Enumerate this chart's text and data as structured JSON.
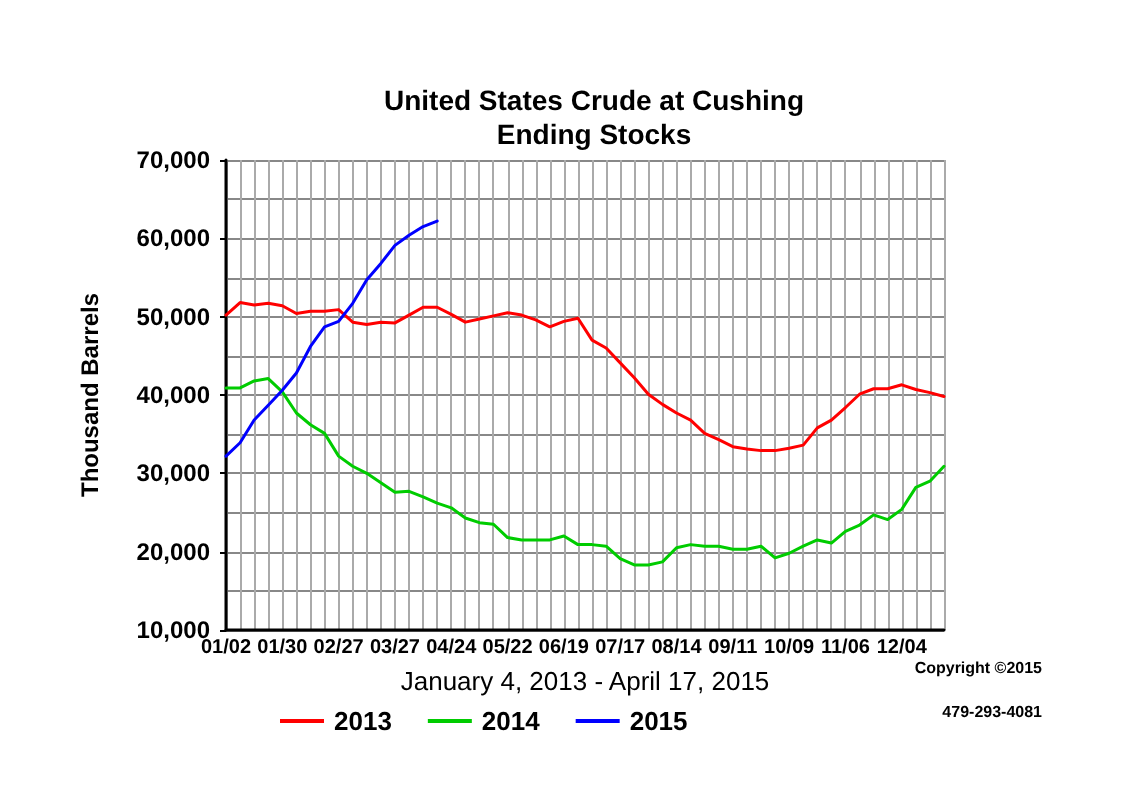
{
  "chart_data": {
    "type": "line",
    "title": "United States Crude at Cushing",
    "subtitle": "Ending Stocks",
    "xlabel": "January 4, 2013 - April 17, 2015",
    "ylabel": "Thousand Barrels",
    "annotations": [
      "Copyright ©2015",
      "479-293-4081"
    ],
    "categories": [
      "01/02",
      null,
      null,
      null,
      "01/30",
      null,
      null,
      null,
      "02/27",
      null,
      null,
      null,
      "03/27",
      null,
      null,
      null,
      "04/24",
      null,
      null,
      null,
      "05/22",
      null,
      null,
      null,
      "06/19",
      null,
      null,
      null,
      "07/17",
      null,
      null,
      null,
      "08/14",
      null,
      null,
      null,
      "09/11",
      null,
      null,
      null,
      "10/09",
      null,
      null,
      null,
      "11/06",
      null,
      null,
      null,
      "12/04",
      null,
      null,
      null
    ],
    "series": [
      {
        "name": "2013",
        "color": "#ff0000",
        "values": [
          50200,
          51800,
          51500,
          51700,
          51400,
          50400,
          50700,
          50700,
          50900,
          49300,
          49000,
          49300,
          49200,
          50200,
          51200,
          51200,
          50300,
          49300,
          49700,
          50100,
          50500,
          50200,
          49600,
          48700,
          49400,
          49800,
          47000,
          46000,
          44100,
          42200,
          40100,
          38800,
          37700,
          36800,
          35100,
          34300,
          33400,
          33100,
          32900,
          32900,
          33200,
          33600,
          35800,
          36800,
          38400,
          40100,
          40800,
          40800,
          41300,
          40700,
          40300,
          39800
        ]
      },
      {
        "name": "2014",
        "color": "#00cc00",
        "values": [
          40900,
          40900,
          41800,
          42100,
          40400,
          37700,
          36200,
          35100,
          32200,
          30900,
          30000,
          28800,
          27600,
          27700,
          27000,
          26200,
          25600,
          24300,
          23700,
          23500,
          21800,
          21500,
          21500,
          21500,
          22000,
          20900,
          20900,
          20700,
          19100,
          18300,
          18300,
          18700,
          20500,
          20900,
          20700,
          20700,
          20300,
          20300,
          20700,
          19200,
          19800,
          20700,
          21500,
          21100,
          22600,
          23400,
          24700,
          24100,
          25400,
          28200,
          29000,
          30900
        ]
      },
      {
        "name": "2015",
        "color": "#0000ff",
        "values": [
          32200,
          33900,
          36800,
          38700,
          40600,
          42800,
          46200,
          48700,
          49400,
          51700,
          54700,
          56800,
          59100,
          60400,
          61500,
          62200,
          null,
          null,
          null,
          null,
          null,
          null,
          null,
          null,
          null,
          null,
          null,
          null,
          null,
          null,
          null,
          null,
          null,
          null,
          null,
          null,
          null,
          null,
          null,
          null,
          null,
          null,
          null,
          null,
          null,
          null,
          null,
          null,
          null,
          null,
          null,
          null
        ]
      }
    ],
    "ylim": [
      10000,
      70000
    ],
    "yticks": [
      {
        "value": 10000,
        "label": "10,000"
      },
      {
        "value": 20000,
        "label": "20,000"
      },
      {
        "value": 30000,
        "label": "30,000"
      },
      {
        "value": 40000,
        "label": "40,000"
      },
      {
        "value": 50000,
        "label": "50,000"
      },
      {
        "value": 60000,
        "label": "60,000"
      },
      {
        "value": 70000,
        "label": "70,000"
      }
    ],
    "grid": true,
    "legend": "bottom",
    "marker": "none",
    "line_style": "solid"
  }
}
